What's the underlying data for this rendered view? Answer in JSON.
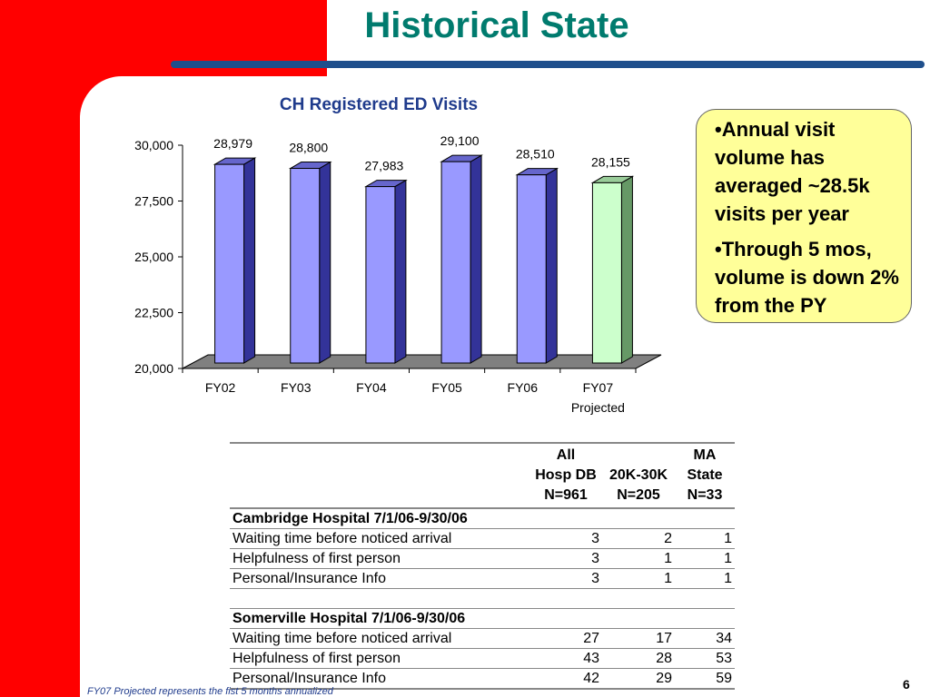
{
  "slide": {
    "title": "Historical State",
    "page_number": "6",
    "footnote": "FY07 Projected represents the fist 5 months annualized"
  },
  "colors": {
    "accent_red": "#ff0000",
    "title_teal": "#007b6e",
    "rule_blue": "#1f4f8c",
    "bar": "#9999ff",
    "bar_projected": "#ccffcc",
    "callout": "#ffff99"
  },
  "chart_data": {
    "type": "bar",
    "title": "CH Registered ED  Visits",
    "categories": [
      "FY02",
      "FY03",
      "FY04",
      "FY05",
      "FY06",
      "FY07"
    ],
    "category_sublabels": [
      "",
      "",
      "",
      "",
      "",
      "Projected"
    ],
    "values": [
      28979,
      28800,
      27983,
      29100,
      28510,
      28155
    ],
    "value_labels": [
      "28,979",
      "28,800",
      "27,983",
      "29,100",
      "28,510",
      "28,155"
    ],
    "projected": [
      false,
      false,
      false,
      false,
      false,
      true
    ],
    "ylim": [
      20000,
      30000
    ],
    "yticks": [
      20000,
      22500,
      25000,
      27500,
      30000
    ],
    "ytick_labels": [
      "20,000",
      "22,500",
      "25,000",
      "27,500",
      "30,000"
    ],
    "xlabel": "",
    "ylabel": "",
    "grid": false,
    "style": "3d"
  },
  "callout": {
    "bullets": [
      "•Annual visit volume has averaged ~28.5k visits per year",
      "•Through 5 mos, volume is down 2% from the PY"
    ]
  },
  "table": {
    "headers": [
      [
        "All",
        "Hosp DB",
        "N=961"
      ],
      [
        "20K-30K",
        "N=205"
      ],
      [
        "MA",
        "State",
        "N=33"
      ]
    ],
    "sections": [
      {
        "title": "Cambridge Hospital 7/1/06-9/30/06",
        "rows": [
          {
            "label": "Waiting time before noticed arrival",
            "values": [
              "3",
              "2",
              "1"
            ]
          },
          {
            "label": "Helpfulness of first person",
            "values": [
              "3",
              "1",
              "1"
            ]
          },
          {
            "label": "Personal/Insurance Info",
            "values": [
              "3",
              "1",
              "1"
            ]
          }
        ]
      },
      {
        "title": "Somerville Hospital 7/1/06-9/30/06",
        "rows": [
          {
            "label": "Waiting time before noticed arrival",
            "values": [
              "27",
              "17",
              "34"
            ]
          },
          {
            "label": "Helpfulness of first person",
            "values": [
              "43",
              "28",
              "53"
            ]
          },
          {
            "label": "Personal/Insurance Info",
            "values": [
              "42",
              "29",
              "59"
            ]
          }
        ]
      }
    ]
  }
}
